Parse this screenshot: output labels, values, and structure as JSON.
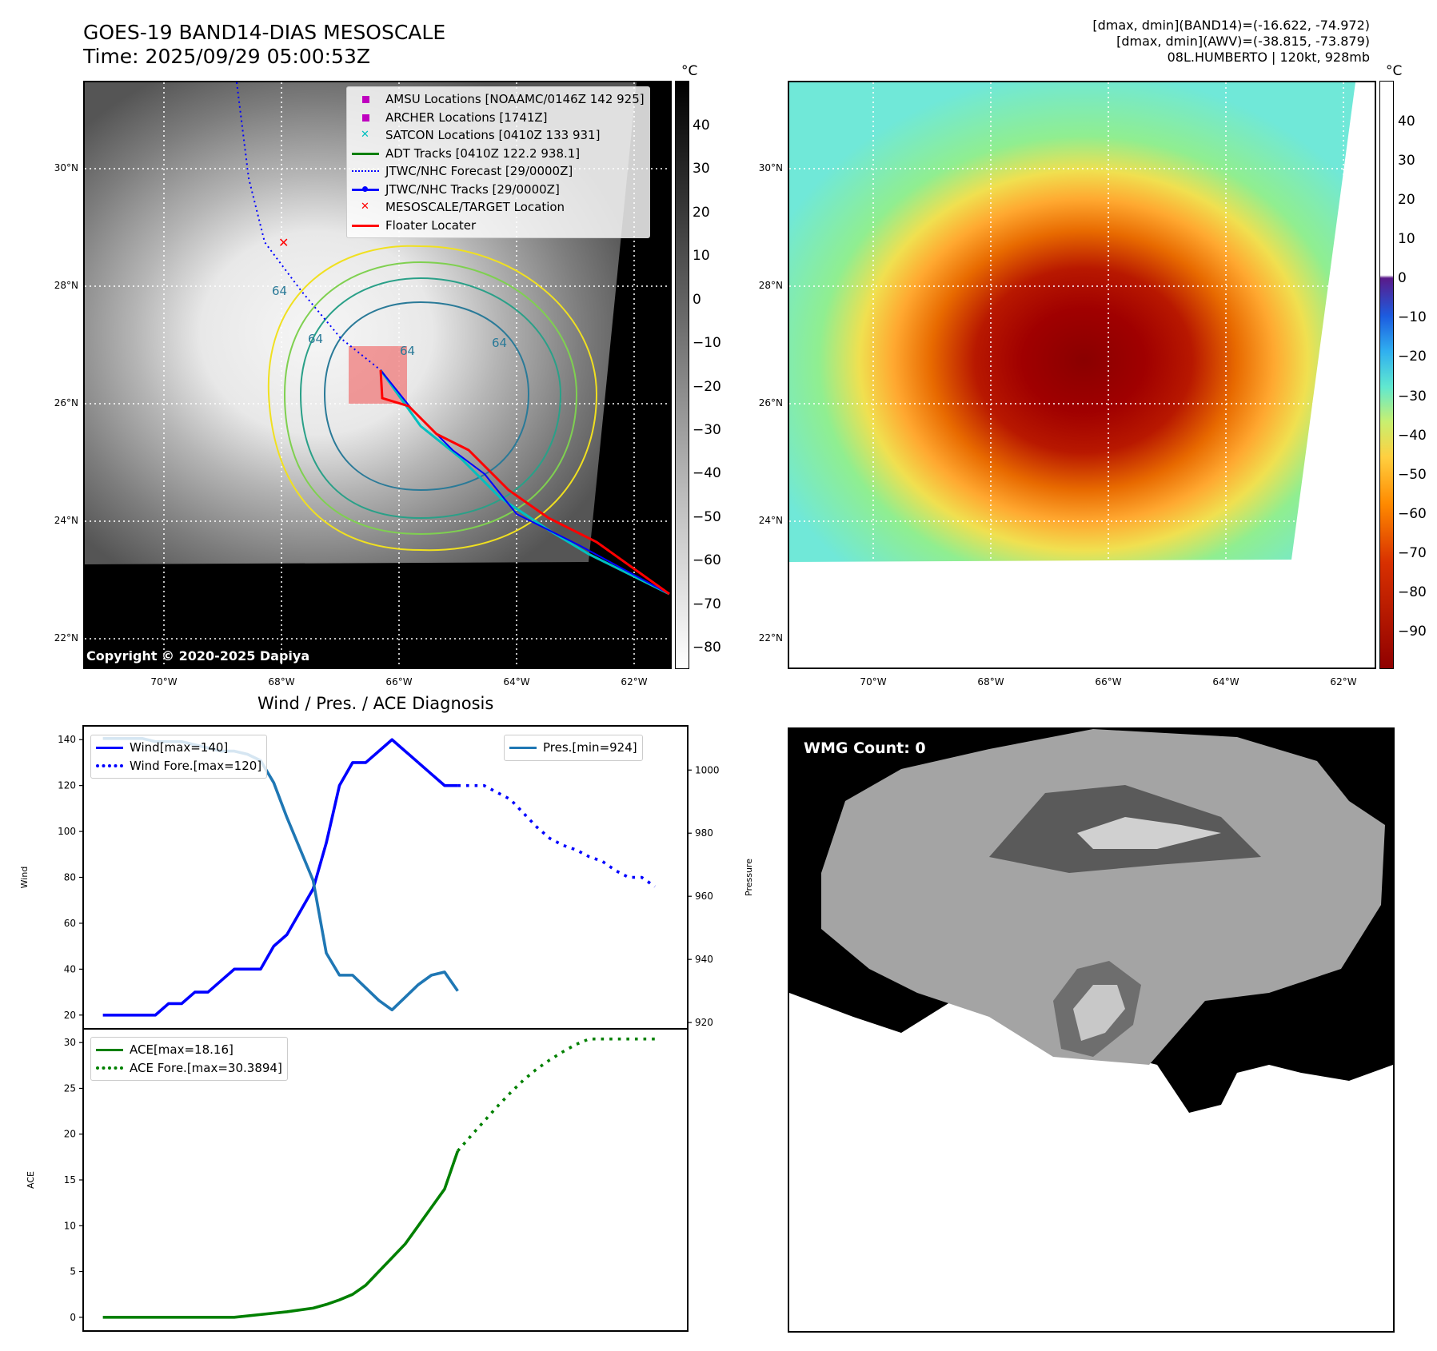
{
  "header": {
    "title_line1": "GOES-19 BAND14-DIAS MESOSCALE",
    "title_line2": "Time: 2025/09/29 05:00:53Z",
    "info_line1": "[dmax, dmin](BAND14)=(-16.622, -74.972)",
    "info_line2": "[dmax, dmin](AWV)=(-38.815, -73.879)",
    "info_line3": "08L.HUMBERTO | 120kt, 928mb"
  },
  "map_axes": {
    "lat_labels": [
      "30°N",
      "28°N",
      "26°N",
      "24°N",
      "22°N"
    ],
    "lon_labels": [
      "70°W",
      "68°W",
      "66°W",
      "64°W",
      "62°W"
    ]
  },
  "ir_panel": {
    "legend": [
      {
        "label": "AMSU Locations [NOAAMC/0146Z 142 925]",
        "symbol": "square",
        "color": "#bf00bf"
      },
      {
        "label": "ARCHER Locations [1741Z]",
        "symbol": "square",
        "color": "#bf00bf"
      },
      {
        "label": "SATCON Locations [0410Z 133 931]",
        "symbol": "cross",
        "color": "#00bfbf"
      },
      {
        "label": "ADT Tracks [0410Z 122.2 938.1]",
        "symbol": "line",
        "color": "#008000"
      },
      {
        "label": "JTWC/NHC Forecast [29/0000Z]",
        "symbol": "dotted",
        "color": "#0000ff"
      },
      {
        "label": "JTWC/NHC Tracks [29/0000Z]",
        "symbol": "line-dot",
        "color": "#0000ff"
      },
      {
        "label": "MESOSCALE/TARGET Location",
        "symbol": "x",
        "color": "#ff0000"
      },
      {
        "label": "Floater Locater",
        "symbol": "line",
        "color": "#ff0000"
      }
    ],
    "contour_label": "64",
    "colorbar_unit": "°C",
    "colorbar_ticks": [
      "40",
      "30",
      "20",
      "10",
      "0",
      "−10",
      "−20",
      "−30",
      "−40",
      "−50",
      "−60",
      "−70",
      "−80"
    ],
    "copyright": "Copyright © 2020-2025 Dapiya"
  },
  "awv_panel": {
    "colorbar_unit": "°C",
    "colorbar_ticks": [
      "40",
      "30",
      "20",
      "10",
      "0",
      "−10",
      "−20",
      "−30",
      "−40",
      "−50",
      "−60",
      "−70",
      "−80",
      "−90"
    ]
  },
  "wmg_panel": {
    "badge": "WMG Count: 0"
  },
  "chart_data": [
    {
      "type": "line",
      "title": "Wind / Pres. / ACE Diagnosis",
      "ylabel": "Wind",
      "ylabel_right": "Pressure",
      "ylim": [
        14,
        146
      ],
      "ylim_right": [
        918,
        1014
      ],
      "yticks": [
        20,
        40,
        60,
        80,
        100,
        120,
        140
      ],
      "yticks_right": [
        920,
        940,
        960,
        980,
        1000
      ],
      "series": [
        {
          "name": "Wind[max=140]",
          "axis": "left",
          "style": "solid",
          "color": "#0000ff",
          "x": [
            0,
            1,
            2,
            3,
            4,
            5,
            6,
            7,
            8,
            9,
            10,
            11,
            12,
            13,
            14,
            15,
            16,
            17,
            18,
            19,
            20,
            21,
            22,
            23,
            24
          ],
          "values": [
            20,
            20,
            20,
            20,
            20,
            25,
            25,
            30,
            30,
            35,
            40,
            40,
            40,
            50,
            55,
            65,
            75,
            95,
            120,
            130,
            130,
            135,
            140,
            135,
            130
          ]
        },
        {
          "name": "",
          "axis": "left",
          "style": "solid",
          "color": "#0000ff",
          "x": [
            24,
            25,
            26,
            27
          ],
          "values": [
            130,
            125,
            120,
            120
          ]
        },
        {
          "name": "Wind Fore.[max=120]",
          "axis": "left",
          "style": "dotted",
          "color": "#0000ff",
          "x": [
            27,
            28,
            29,
            30,
            31,
            32,
            33,
            34,
            35,
            36,
            37,
            38,
            39,
            40,
            41,
            42
          ],
          "values": [
            120,
            120,
            120,
            117,
            114,
            108,
            102,
            97,
            94,
            92,
            89,
            87,
            83,
            80,
            80,
            76
          ]
        },
        {
          "name": "Pres.[min=924]",
          "axis": "right",
          "style": "solid",
          "color": "#1f77b4",
          "x": [
            0,
            1,
            2,
            3,
            4,
            5,
            6,
            7,
            8,
            9,
            10,
            11,
            12,
            13,
            14,
            15,
            16,
            17,
            18,
            19,
            20,
            21,
            22,
            23,
            24,
            25,
            26,
            27
          ],
          "values": [
            1010,
            1010,
            1010,
            1010,
            1009,
            1009,
            1009,
            1008,
            1007,
            1006,
            1006,
            1005,
            1003,
            996,
            985,
            975,
            965,
            942,
            935,
            935,
            931,
            927,
            924,
            928,
            932,
            935,
            936,
            930
          ]
        }
      ]
    },
    {
      "type": "line",
      "ylabel": "ACE",
      "ylim": [
        -1.5,
        31.5
      ],
      "yticks": [
        0,
        5,
        10,
        15,
        20,
        25,
        30
      ],
      "series": [
        {
          "name": "ACE[max=18.16]",
          "style": "solid",
          "color": "#008000",
          "x": [
            0,
            4,
            8,
            10,
            12,
            14,
            16,
            17,
            18,
            19,
            20,
            21,
            22,
            23,
            24,
            25,
            26,
            27
          ],
          "values": [
            0,
            0,
            0,
            0,
            0.3,
            0.6,
            1.0,
            1.4,
            1.9,
            2.5,
            3.5,
            5,
            6.5,
            8,
            10,
            12,
            14,
            18.16
          ]
        },
        {
          "name": "ACE Fore.[max=30.3894]",
          "style": "dotted",
          "color": "#008000",
          "x": [
            27,
            28,
            29,
            30,
            31,
            32,
            33,
            34,
            35,
            36,
            37,
            38,
            39,
            40,
            41,
            42
          ],
          "values": [
            18.16,
            19.8,
            21.4,
            23.0,
            24.5,
            25.9,
            27.1,
            28.1,
            29.0,
            29.8,
            30.39,
            30.39,
            30.39,
            30.39,
            30.39,
            30.39
          ]
        }
      ]
    }
  ]
}
